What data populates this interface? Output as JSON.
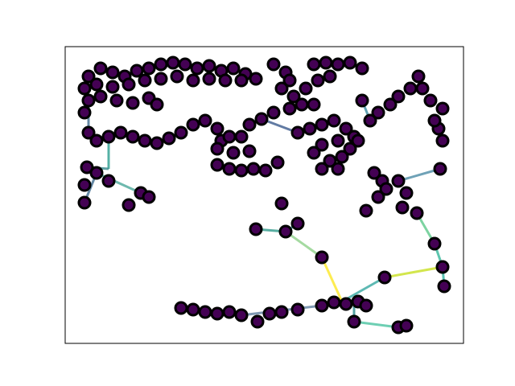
{
  "chart_data": {
    "type": "network",
    "xlim": [
      81,
      576
    ],
    "ylim": [
      427,
      58
    ],
    "node_color": "#440154",
    "node_edge_color": "#000000",
    "nodes": {
      "x": [
        110,
        125,
        140,
        155,
        170,
        185,
        200,
        215,
        230,
        245,
        260,
        275,
        290,
        305,
        318,
        300,
        280,
        260,
        240,
        220,
        200,
        180,
        160,
        140,
        120,
        105,
        110,
        125,
        145,
        165,
        185,
        195,
        105,
        110,
        120,
        135,
        150,
        165,
        180,
        195,
        210,
        225,
        240,
        255,
        270,
        275,
        270,
        285,
        300,
        290,
        310,
        270,
        285,
        300,
        315,
        330,
        345,
        108,
        120,
        105,
        135,
        175,
        185,
        160,
        105,
        340,
        355,
        360,
        350,
        365,
        380,
        395,
        410,
        390,
        405,
        420,
        435,
        450,
        375,
        390,
        360,
        340,
        325,
        310,
        370,
        385,
        400,
        415,
        430,
        440,
        420,
        400,
        390,
        410,
        425,
        435,
        445,
        400,
        420,
        450,
        460,
        470,
        485,
        495,
        510,
        520,
        525,
        535,
        550,
        545,
        550,
        540,
        465,
        475,
        480,
        470,
        455,
        495,
        505,
        500,
        518,
        547,
        350,
        370,
        355,
        318,
        400,
        540,
        550,
        552,
        478,
        440,
        495,
        505,
        225,
        240,
        255,
        270,
        285,
        300,
        320,
        335,
        350,
        370,
        400,
        415,
        430,
        445,
        455
      ],
      "y": [
        95,
        85,
        90,
        95,
        88,
        85,
        80,
        78,
        80,
        85,
        82,
        88,
        85,
        92,
        98,
        100,
        100,
        98,
        100,
        95,
        98,
        100,
        105,
        108,
        105,
        110,
        125,
        120,
        125,
        128,
        122,
        130,
        140,
        165,
        175,
        170,
        165,
        170,
        175,
        178,
        172,
        165,
        155,
        150,
        160,
        175,
        185,
        170,
        170,
        190,
        188,
        205,
        210,
        212,
        210,
        212,
        202,
        208,
        215,
        230,
        225,
        240,
        245,
        255,
        252,
        80,
        90,
        100,
        110,
        120,
        110,
        100,
        95,
        80,
        78,
        80,
        78,
        85,
        130,
        130,
        135,
        140,
        148,
        155,
        165,
        160,
        155,
        150,
        160,
        170,
        175,
        180,
        190,
        200,
        195,
        185,
        175,
        210,
        210,
        125,
        150,
        140,
        130,
        120,
        110,
        95,
        110,
        125,
        135,
        160,
        175,
        150,
        215,
        225,
        235,
        245,
        262,
        225,
        240,
        258,
        265,
        210,
        253,
        278,
        288,
        285,
        320,
        303,
        332,
        356,
        345,
        400,
        407,
        405,
        383,
        385,
        388,
        390,
        388,
        392,
        400,
        390,
        388,
        385,
        380,
        376,
        378,
        375,
        380
      ]
    },
    "edges": [
      {
        "x": [
          135,
          135
        ],
        "y": [
          170,
          210
        ],
        "color": "#2a9d8f"
      },
      {
        "x": [
          135,
          108
        ],
        "y": [
          210,
          208
        ],
        "color": "#3a8a8c"
      },
      {
        "x": [
          120,
          175
        ],
        "y": [
          215,
          240
        ],
        "color": "#4aa89a"
      },
      {
        "x": [
          120,
          105
        ],
        "y": [
          215,
          252
        ],
        "color": "#3e6b8e"
      },
      {
        "x": [
          318,
          355
        ],
        "y": [
          285,
          288
        ],
        "color": "#2e9a8a"
      },
      {
        "x": [
          355,
          370
        ],
        "y": [
          288,
          278
        ],
        "color": "#2e8a8c"
      },
      {
        "x": [
          355,
          400
        ],
        "y": [
          288,
          320
        ],
        "color": "#8fd18a"
      },
      {
        "x": [
          400,
          425
        ],
        "y": [
          320,
          375
        ],
        "color": "#fde725"
      },
      {
        "x": [
          425,
          478
        ],
        "y": [
          375,
          345
        ],
        "color": "#35a7a0"
      },
      {
        "x": [
          478,
          550
        ],
        "y": [
          345,
          332
        ],
        "color": "#c8e020"
      },
      {
        "x": [
          550,
          540
        ],
        "y": [
          332,
          303
        ],
        "color": "#35b79a"
      },
      {
        "x": [
          540,
          518
        ],
        "y": [
          303,
          265
        ],
        "color": "#5cc88a"
      },
      {
        "x": [
          550,
          552
        ],
        "y": [
          332,
          356
        ],
        "color": "#2db29d"
      },
      {
        "x": [
          440,
          495
        ],
        "y": [
          400,
          407
        ],
        "color": "#4ac3a0"
      },
      {
        "x": [
          440,
          440
        ],
        "y": [
          400,
          378
        ],
        "color": "#2a8a8c"
      },
      {
        "x": [
          300,
          400
        ],
        "y": [
          392,
          380
        ],
        "color": "#5f7fa0"
      },
      {
        "x": [
          495,
          547
        ],
        "y": [
          225,
          210
        ],
        "color": "#4b8ba5"
      },
      {
        "x": [
          460,
          450
        ],
        "y": [
          150,
          125
        ],
        "color": "#3a8aa0"
      },
      {
        "x": [
          110,
          110
        ],
        "y": [
          125,
          165
        ],
        "color": "#3e6b8e"
      },
      {
        "x": [
          325,
          370
        ],
        "y": [
          148,
          165
        ],
        "color": "#3b5a8c"
      }
    ]
  }
}
